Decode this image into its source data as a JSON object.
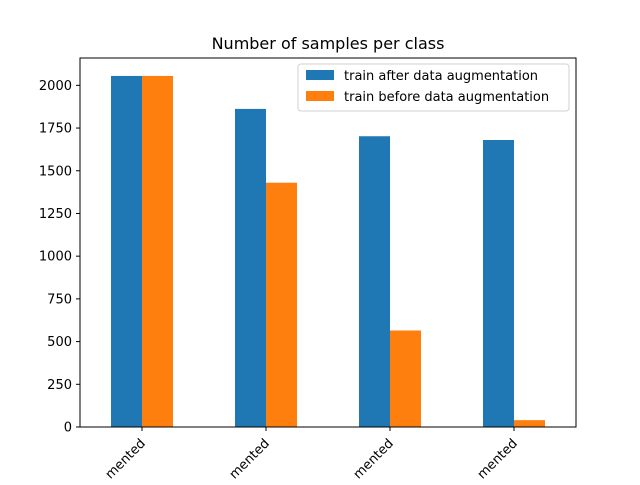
{
  "chart_data": {
    "type": "bar",
    "title": "Number of samples per class",
    "xlabel": "",
    "ylabel": "",
    "categories": [
      "mented",
      "mented",
      "mented",
      "mented"
    ],
    "series": [
      {
        "name": "train after data augmentation",
        "color": "#1f77b4",
        "values": [
          2055,
          1862,
          1702,
          1680
        ]
      },
      {
        "name": "train before data augmentation",
        "color": "#ff7f0e",
        "values": [
          2055,
          1430,
          565,
          40
        ]
      }
    ],
    "ylim": [
      0,
      2160
    ],
    "yticks": [
      0,
      250,
      500,
      750,
      1000,
      1250,
      1500,
      1750,
      2000
    ],
    "legend_position": "top-right",
    "grid": false
  }
}
